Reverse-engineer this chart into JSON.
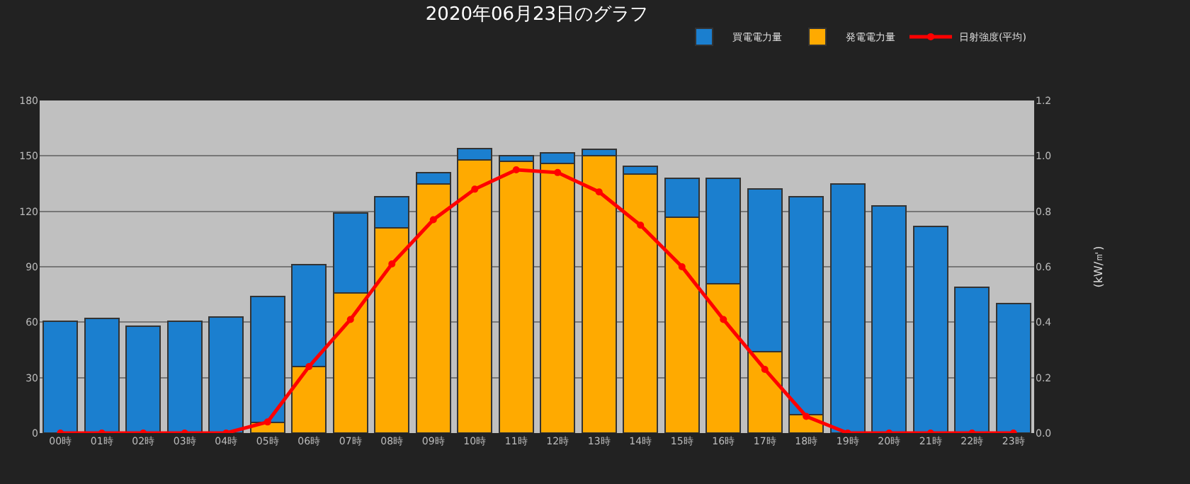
{
  "chart_data": {
    "type": "bar",
    "title": "2020年06月23日のグラフ",
    "y2label": "(kW/㎡)",
    "categories": [
      "00時",
      "01時",
      "02時",
      "03時",
      "04時",
      "05時",
      "06時",
      "07時",
      "08時",
      "09時",
      "10時",
      "11時",
      "12時",
      "13時",
      "14時",
      "15時",
      "16時",
      "17時",
      "18時",
      "19時",
      "20時",
      "21時",
      "22時",
      "23時"
    ],
    "stacked": true,
    "series": [
      {
        "name": "発電電力量",
        "color": "#ffaa00",
        "values": [
          0,
          0,
          0,
          0,
          0,
          5.6,
          36,
          76,
          111,
          135,
          148,
          147,
          146,
          150,
          140,
          117,
          81,
          44,
          10,
          0,
          0,
          0,
          0,
          0
        ]
      },
      {
        "name": "買電電力量",
        "color": "#1b7fcf",
        "values": [
          60.5,
          62,
          58,
          60.5,
          63,
          68.5,
          55,
          43,
          17,
          6,
          6,
          3,
          5.5,
          3.5,
          4.5,
          21,
          57,
          88,
          118,
          135,
          123,
          112,
          79,
          70
        ]
      },
      {
        "name": "日射強度(平均)",
        "type": "line",
        "axis": "y2",
        "color": "#ff0000",
        "marker": "circle",
        "values": [
          0,
          0,
          0,
          0,
          0,
          0.04,
          0.24,
          0.41,
          0.61,
          0.77,
          0.88,
          0.95,
          0.94,
          0.87,
          0.75,
          0.6,
          0.41,
          0.23,
          0.06,
          0,
          0,
          0,
          0,
          0
        ]
      }
    ],
    "ylim": [
      0,
      180
    ],
    "yticks": [
      0,
      30,
      60,
      90,
      120,
      150,
      180
    ],
    "y2lim": [
      0,
      1.2
    ],
    "y2ticks": [
      {
        "value": 0,
        "label": "0.0"
      },
      0.2,
      0.4,
      0.6,
      0.8,
      {
        "value": 1,
        "label": "1.0"
      },
      1.2
    ],
    "grid": "y",
    "legend": "top right"
  }
}
